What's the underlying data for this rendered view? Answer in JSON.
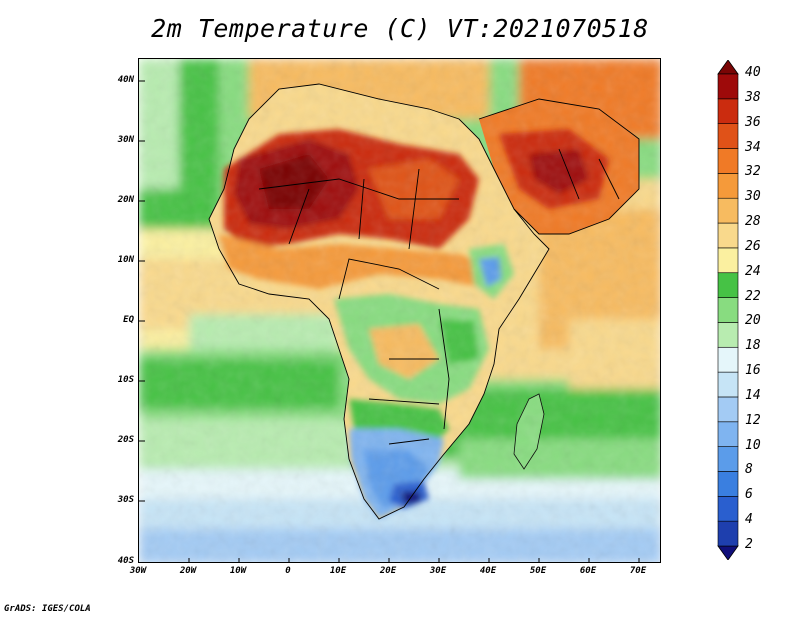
{
  "title": "2m Temperature (C) VT:2021070518",
  "footer": "GrADS: IGES/COLA",
  "chart_data": {
    "type": "heatmap",
    "variable": "2m Temperature",
    "units": "C",
    "valid_time": "2021070518",
    "x_range": [
      -30,
      75
    ],
    "y_range": [
      -40,
      45
    ],
    "x_ticks": [
      "30W",
      "20W",
      "10W",
      "0",
      "10E",
      "20E",
      "30E",
      "40E",
      "50E",
      "60E",
      "70E"
    ],
    "y_ticks": [
      "40N",
      "30N",
      "20N",
      "10N",
      "EQ",
      "10S",
      "20S",
      "30S",
      "40S"
    ],
    "colorbar": {
      "levels": [
        "2",
        "4",
        "6",
        "8",
        "10",
        "12",
        "14",
        "16",
        "18",
        "20",
        "22",
        "24",
        "26",
        "28",
        "30",
        "32",
        "34",
        "36",
        "38",
        "40"
      ],
      "colors": [
        "#100f7a",
        "#1e3fae",
        "#2a5fcf",
        "#3a7fe0",
        "#5b9cea",
        "#7fb4f0",
        "#a3cbf4",
        "#c6e4f6",
        "#e5f6fa",
        "#b8ecb0",
        "#88dc80",
        "#46c245",
        "#fbf0a0",
        "#f9d98c",
        "#f7bb60",
        "#f59a3a",
        "#f07a26",
        "#e05218",
        "#cb2c0f",
        "#9e0a0a",
        "#7a0505"
      ]
    }
  }
}
